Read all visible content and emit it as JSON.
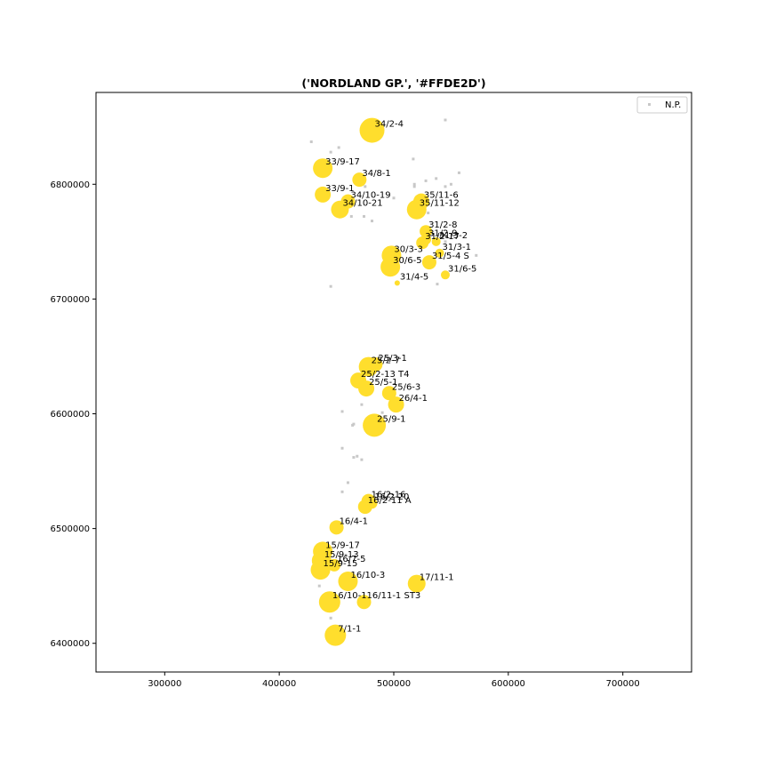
{
  "chart_data": {
    "type": "scatter",
    "title": "('NORDLAND GP.', '#FFDE2D')",
    "xlabel": "",
    "ylabel": "",
    "xlim": [
      240000,
      760000
    ],
    "ylim": [
      6375000,
      6880000
    ],
    "xticks": [
      300000,
      400000,
      500000,
      600000,
      700000
    ],
    "yticks": [
      6400000,
      6500000,
      6600000,
      6700000,
      6800000
    ],
    "grid": false,
    "legend": {
      "position": "top-right",
      "entries": [
        "N.P."
      ]
    },
    "colors": {
      "wells": "#FFDE2D",
      "np_points": "#c8c8c8",
      "axis": "#000000"
    },
    "series": [
      {
        "name": "N.P.",
        "marker": "square-small",
        "points": [
          [
            545000,
            6856000
          ],
          [
            428000,
            6837000
          ],
          [
            452000,
            6832000
          ],
          [
            445000,
            6828000
          ],
          [
            517000,
            6822000
          ],
          [
            557000,
            6810000
          ],
          [
            537000,
            6805000
          ],
          [
            528000,
            6803000
          ],
          [
            550000,
            6800000
          ],
          [
            518000,
            6800000
          ],
          [
            518000,
            6798000
          ],
          [
            545000,
            6798000
          ],
          [
            475000,
            6798000
          ],
          [
            500000,
            6788000
          ],
          [
            530000,
            6775000
          ],
          [
            463000,
            6772000
          ],
          [
            474000,
            6772000
          ],
          [
            481000,
            6768000
          ],
          [
            545000,
            6750000
          ],
          [
            572000,
            6738000
          ],
          [
            445000,
            6711000
          ],
          [
            538000,
            6713000
          ],
          [
            503000,
            6713000
          ],
          [
            472000,
            6608000
          ],
          [
            490000,
            6601000
          ],
          [
            455000,
            6602000
          ],
          [
            465000,
            6591000
          ],
          [
            464000,
            6590000
          ],
          [
            455000,
            6570000
          ],
          [
            468000,
            6563000
          ],
          [
            465000,
            6562000
          ],
          [
            472000,
            6560000
          ],
          [
            460000,
            6540000
          ],
          [
            455000,
            6532000
          ],
          [
            435000,
            6450000
          ],
          [
            445000,
            6422000
          ]
        ]
      },
      {
        "name": "",
        "marker": "circle-sized",
        "points": [
          {
            "label": "34/2-4",
            "x": 481000,
            "y": 6847000,
            "r": 14
          },
          {
            "label": "33/9-17",
            "x": 438000,
            "y": 6814000,
            "r": 11
          },
          {
            "label": "34/8-1",
            "x": 470000,
            "y": 6804000,
            "r": 8
          },
          {
            "label": "33/9-1",
            "x": 438000,
            "y": 6791000,
            "r": 9
          },
          {
            "label": "34/10-19",
            "x": 460000,
            "y": 6785000,
            "r": 8
          },
          {
            "label": "34/10-21",
            "x": 453000,
            "y": 6778000,
            "r": 10
          },
          {
            "label": "35/11-6",
            "x": 524000,
            "y": 6785000,
            "r": 9
          },
          {
            "label": "35/11-12",
            "x": 520000,
            "y": 6778000,
            "r": 11
          },
          {
            "label": "31/2-8",
            "x": 528000,
            "y": 6759000,
            "r": 7
          },
          {
            "label": "31/2-9",
            "x": 528000,
            "y": 6752000,
            "r": 6
          },
          {
            "label": "31/2-17",
            "x": 525000,
            "y": 6749000,
            "r": 7
          },
          {
            "label": "31/3-2",
            "x": 537000,
            "y": 6750000,
            "r": 5
          },
          {
            "label": "31/3-1",
            "x": 540000,
            "y": 6740000,
            "r": 5
          },
          {
            "label": "30/3-3",
            "x": 498000,
            "y": 6738000,
            "r": 11
          },
          {
            "label": "31/5-4 S",
            "x": 531000,
            "y": 6732000,
            "r": 8
          },
          {
            "label": "30/6-5",
            "x": 497000,
            "y": 6728000,
            "r": 11
          },
          {
            "label": "31/6-5",
            "x": 545000,
            "y": 6721000,
            "r": 5
          },
          {
            "label": "31/4-5",
            "x": 503000,
            "y": 6714000,
            "r": 3
          },
          {
            "label": "25/3-1",
            "x": 484000,
            "y": 6643000,
            "r": 8
          },
          {
            "label": "25/2-7",
            "x": 478000,
            "y": 6641000,
            "r": 11
          },
          {
            "label": "25/2-13 T4",
            "x": 469000,
            "y": 6629000,
            "r": 9
          },
          {
            "label": "25/5-1",
            "x": 476000,
            "y": 6622000,
            "r": 9
          },
          {
            "label": "25/6-3",
            "x": 496000,
            "y": 6618000,
            "r": 8
          },
          {
            "label": "26/4-1",
            "x": 502000,
            "y": 6608000,
            "r": 9
          },
          {
            "label": "25/9-1",
            "x": 483000,
            "y": 6590000,
            "r": 13
          },
          {
            "label": "16/2-16",
            "x": 478000,
            "y": 6524000,
            "r": 8
          },
          {
            "label": "16/2-20",
            "x": 481000,
            "y": 6522000,
            "r": 6
          },
          {
            "label": "16/2-11 A",
            "x": 475000,
            "y": 6519000,
            "r": 8
          },
          {
            "label": "16/4-1",
            "x": 450000,
            "y": 6501000,
            "r": 8
          },
          {
            "label": "15/9-17",
            "x": 438000,
            "y": 6480000,
            "r": 11
          },
          {
            "label": "15/9-13",
            "x": 437000,
            "y": 6472000,
            "r": 11
          },
          {
            "label": "16/7-5",
            "x": 448000,
            "y": 6468000,
            "r": 7
          },
          {
            "label": "15/9-15",
            "x": 436000,
            "y": 6464000,
            "r": 11
          },
          {
            "label": "16/10-3",
            "x": 460000,
            "y": 6454000,
            "r": 11
          },
          {
            "label": "17/11-1",
            "x": 520000,
            "y": 6452000,
            "r": 10
          },
          {
            "label": "16/10-1",
            "x": 444000,
            "y": 6436000,
            "r": 12
          },
          {
            "label": "16/11-1 ST3",
            "x": 474000,
            "y": 6436000,
            "r": 8
          },
          {
            "label": "7/1-1",
            "x": 449000,
            "y": 6407000,
            "r": 12
          }
        ]
      }
    ]
  }
}
